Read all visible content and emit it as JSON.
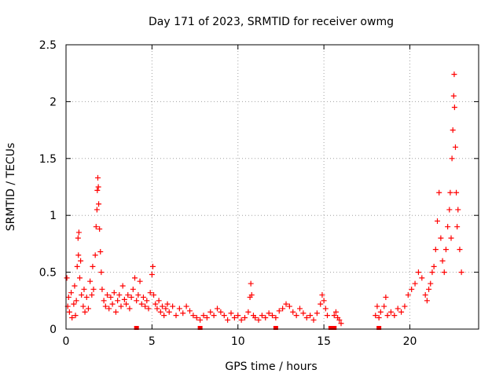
{
  "chart_data": {
    "type": "scatter",
    "title": "Day 171 of 2023, SRMTID for receiver owmg",
    "xlabel": "GPS time / hours",
    "ylabel": "SRMTID / TECUs",
    "xlim": [
      0,
      24
    ],
    "ylim": [
      0,
      2.5
    ],
    "x_ticks": [
      0,
      5,
      10,
      15,
      20
    ],
    "x_tick_labels": [
      "0",
      "5",
      "10",
      "15",
      "20"
    ],
    "y_ticks": [
      0,
      0.5,
      1,
      1.5,
      2,
      2.5
    ],
    "y_tick_labels": [
      "0",
      "0.5",
      "1",
      "1.5",
      "2",
      "2.5"
    ],
    "grid": true,
    "marker": "+",
    "color": "#ff0000",
    "zero_markers_x": [
      4.1,
      7.8,
      12.2,
      15.4,
      15.6,
      18.2
    ],
    "series": [
      {
        "name": "SRMTID",
        "points": [
          [
            0.05,
            0.45
          ],
          [
            0.1,
            0.2
          ],
          [
            0.15,
            0.28
          ],
          [
            0.2,
            0.15
          ],
          [
            0.3,
            0.32
          ],
          [
            0.35,
            0.1
          ],
          [
            0.45,
            0.22
          ],
          [
            0.5,
            0.38
          ],
          [
            0.55,
            0.12
          ],
          [
            0.6,
            0.25
          ],
          [
            0.65,
            0.55
          ],
          [
            0.7,
            0.8
          ],
          [
            0.72,
            0.65
          ],
          [
            0.75,
            0.85
          ],
          [
            0.8,
            0.45
          ],
          [
            0.85,
            0.6
          ],
          [
            0.9,
            0.3
          ],
          [
            1.0,
            0.2
          ],
          [
            1.05,
            0.35
          ],
          [
            1.1,
            0.15
          ],
          [
            1.2,
            0.28
          ],
          [
            1.3,
            0.18
          ],
          [
            1.4,
            0.42
          ],
          [
            1.5,
            0.3
          ],
          [
            1.55,
            0.55
          ],
          [
            1.6,
            0.35
          ],
          [
            1.7,
            0.65
          ],
          [
            1.75,
            0.9
          ],
          [
            1.8,
            1.05
          ],
          [
            1.82,
            1.22
          ],
          [
            1.85,
            1.33
          ],
          [
            1.88,
            1.25
          ],
          [
            1.9,
            1.1
          ],
          [
            1.95,
            0.88
          ],
          [
            2.0,
            0.68
          ],
          [
            2.05,
            0.5
          ],
          [
            2.1,
            0.35
          ],
          [
            2.2,
            0.25
          ],
          [
            2.3,
            0.2
          ],
          [
            2.4,
            0.3
          ],
          [
            2.5,
            0.18
          ],
          [
            2.6,
            0.28
          ],
          [
            2.7,
            0.22
          ],
          [
            2.8,
            0.32
          ],
          [
            2.9,
            0.15
          ],
          [
            3.0,
            0.25
          ],
          [
            3.1,
            0.3
          ],
          [
            3.2,
            0.2
          ],
          [
            3.3,
            0.38
          ],
          [
            3.4,
            0.26
          ],
          [
            3.5,
            0.22
          ],
          [
            3.6,
            0.3
          ],
          [
            3.7,
            0.18
          ],
          [
            3.8,
            0.28
          ],
          [
            3.9,
            0.35
          ],
          [
            4.0,
            0.45
          ],
          [
            4.1,
            0.25
          ],
          [
            4.2,
            0.3
          ],
          [
            4.3,
            0.42
          ],
          [
            4.4,
            0.22
          ],
          [
            4.5,
            0.28
          ],
          [
            4.6,
            0.2
          ],
          [
            4.7,
            0.25
          ],
          [
            4.8,
            0.18
          ],
          [
            4.9,
            0.32
          ],
          [
            5.0,
            0.48
          ],
          [
            5.05,
            0.55
          ],
          [
            5.1,
            0.3
          ],
          [
            5.2,
            0.22
          ],
          [
            5.3,
            0.18
          ],
          [
            5.4,
            0.25
          ],
          [
            5.5,
            0.15
          ],
          [
            5.6,
            0.2
          ],
          [
            5.7,
            0.12
          ],
          [
            5.8,
            0.18
          ],
          [
            5.9,
            0.22
          ],
          [
            6.0,
            0.15
          ],
          [
            6.2,
            0.2
          ],
          [
            6.4,
            0.12
          ],
          [
            6.6,
            0.18
          ],
          [
            6.8,
            0.14
          ],
          [
            7.0,
            0.2
          ],
          [
            7.2,
            0.16
          ],
          [
            7.4,
            0.12
          ],
          [
            7.6,
            0.1
          ],
          [
            7.8,
            0.08
          ],
          [
            8.0,
            0.12
          ],
          [
            8.2,
            0.1
          ],
          [
            8.4,
            0.15
          ],
          [
            8.6,
            0.12
          ],
          [
            8.8,
            0.18
          ],
          [
            9.0,
            0.15
          ],
          [
            9.2,
            0.12
          ],
          [
            9.4,
            0.08
          ],
          [
            9.6,
            0.14
          ],
          [
            9.8,
            0.1
          ],
          [
            10.0,
            0.12
          ],
          [
            10.2,
            0.08
          ],
          [
            10.4,
            0.1
          ],
          [
            10.6,
            0.15
          ],
          [
            10.7,
            0.28
          ],
          [
            10.75,
            0.4
          ],
          [
            10.8,
            0.3
          ],
          [
            10.9,
            0.12
          ],
          [
            11.0,
            0.1
          ],
          [
            11.2,
            0.08
          ],
          [
            11.4,
            0.12
          ],
          [
            11.6,
            0.1
          ],
          [
            11.8,
            0.14
          ],
          [
            12.0,
            0.12
          ],
          [
            12.2,
            0.1
          ],
          [
            12.4,
            0.16
          ],
          [
            12.6,
            0.18
          ],
          [
            12.8,
            0.22
          ],
          [
            13.0,
            0.2
          ],
          [
            13.2,
            0.15
          ],
          [
            13.4,
            0.12
          ],
          [
            13.6,
            0.18
          ],
          [
            13.8,
            0.14
          ],
          [
            14.0,
            0.1
          ],
          [
            14.2,
            0.12
          ],
          [
            14.4,
            0.08
          ],
          [
            14.6,
            0.14
          ],
          [
            14.8,
            0.22
          ],
          [
            14.9,
            0.3
          ],
          [
            15.0,
            0.25
          ],
          [
            15.1,
            0.18
          ],
          [
            15.2,
            0.12
          ],
          [
            15.6,
            0.12
          ],
          [
            15.7,
            0.15
          ],
          [
            15.8,
            0.1
          ],
          [
            15.9,
            0.08
          ],
          [
            16.0,
            0.05
          ],
          [
            18.0,
            0.12
          ],
          [
            18.1,
            0.2
          ],
          [
            18.2,
            0.1
          ],
          [
            18.3,
            0.15
          ],
          [
            18.5,
            0.2
          ],
          [
            18.6,
            0.28
          ],
          [
            18.7,
            0.12
          ],
          [
            18.9,
            0.15
          ],
          [
            19.1,
            0.12
          ],
          [
            19.3,
            0.18
          ],
          [
            19.5,
            0.15
          ],
          [
            19.7,
            0.2
          ],
          [
            19.9,
            0.3
          ],
          [
            20.1,
            0.35
          ],
          [
            20.3,
            0.4
          ],
          [
            20.5,
            0.5
          ],
          [
            20.7,
            0.45
          ],
          [
            20.9,
            0.3
          ],
          [
            21.0,
            0.25
          ],
          [
            21.1,
            0.35
          ],
          [
            21.2,
            0.4
          ],
          [
            21.3,
            0.5
          ],
          [
            21.4,
            0.55
          ],
          [
            21.5,
            0.7
          ],
          [
            21.6,
            0.95
          ],
          [
            21.7,
            1.2
          ],
          [
            21.8,
            0.8
          ],
          [
            21.9,
            0.6
          ],
          [
            22.0,
            0.5
          ],
          [
            22.1,
            0.7
          ],
          [
            22.2,
            0.9
          ],
          [
            22.3,
            1.05
          ],
          [
            22.35,
            1.2
          ],
          [
            22.4,
            0.8
          ],
          [
            22.45,
            1.5
          ],
          [
            22.5,
            1.75
          ],
          [
            22.55,
            2.05
          ],
          [
            22.58,
            2.24
          ],
          [
            22.6,
            1.95
          ],
          [
            22.65,
            1.6
          ],
          [
            22.7,
            1.2
          ],
          [
            22.75,
            0.9
          ],
          [
            22.8,
            1.05
          ],
          [
            22.9,
            0.7
          ],
          [
            23.0,
            0.5
          ]
        ]
      }
    ]
  }
}
